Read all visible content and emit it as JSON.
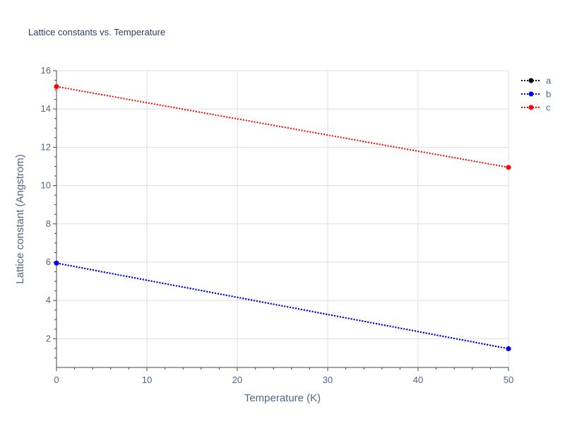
{
  "chart_data": {
    "type": "line",
    "title": "Lattice constants vs. Temperature",
    "xlabel": "Temperature (K)",
    "ylabel": "Lattice constant (Angstrom)",
    "xlim": [
      0,
      50
    ],
    "ylim": [
      0.5,
      16
    ],
    "x_ticks": [
      0,
      10,
      20,
      30,
      40,
      50
    ],
    "y_ticks": [
      2,
      4,
      6,
      8,
      10,
      12,
      14,
      16
    ],
    "grid": true,
    "legend_position": "top-right",
    "line_style": "dotted",
    "series": [
      {
        "name": "a",
        "color": "#000000",
        "x": [
          0,
          50
        ],
        "y": [
          5.95,
          1.48
        ]
      },
      {
        "name": "b",
        "color": "#0000ff",
        "x": [
          0,
          50
        ],
        "y": [
          5.95,
          1.48
        ]
      },
      {
        "name": "c",
        "color": "#ff0000",
        "x": [
          0,
          50
        ],
        "y": [
          15.17,
          10.95
        ]
      }
    ]
  }
}
